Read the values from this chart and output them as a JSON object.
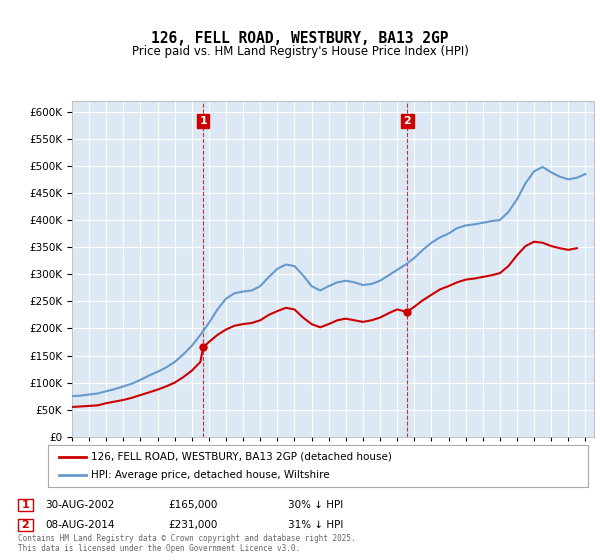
{
  "title": "126, FELL ROAD, WESTBURY, BA13 2GP",
  "subtitle": "Price paid vs. HM Land Registry's House Price Index (HPI)",
  "ylabel": "",
  "xlim_start": 1995,
  "xlim_end": 2025.5,
  "ylim": [
    0,
    620000
  ],
  "yticks": [
    0,
    50000,
    100000,
    150000,
    200000,
    250000,
    300000,
    350000,
    400000,
    450000,
    500000,
    550000,
    600000
  ],
  "background_color": "#dce9f5",
  "plot_bg_color": "#dce9f5",
  "grid_color": "#ffffff",
  "legend_labels": [
    "126, FELL ROAD, WESTBURY, BA13 2GP (detached house)",
    "HPI: Average price, detached house, Wiltshire"
  ],
  "legend_colors": [
    "#cc0000",
    "#6699cc"
  ],
  "purchase1_x": 2002.66,
  "purchase1_y": 165000,
  "purchase1_date": "30-AUG-2002",
  "purchase1_price": "£165,000",
  "purchase1_hpi": "30% ↓ HPI",
  "purchase2_x": 2014.6,
  "purchase2_y": 231000,
  "purchase2_date": "08-AUG-2014",
  "purchase2_price": "£231,000",
  "purchase2_hpi": "31% ↓ HPI",
  "footer": "Contains HM Land Registry data © Crown copyright and database right 2025.\nThis data is licensed under the Open Government Licence v3.0.",
  "hpi_line_color": "#6699cc",
  "price_line_color": "#cc0000",
  "vline_color": "#cc0000",
  "marker_color": "#cc0000",
  "hpi_data_x": [
    1995,
    1995.5,
    1996,
    1996.5,
    1997,
    1997.5,
    1998,
    1998.5,
    1999,
    1999.5,
    2000,
    2000.5,
    2001,
    2001.5,
    2002,
    2002.5,
    2003,
    2003.5,
    2004,
    2004.5,
    2005,
    2005.5,
    2006,
    2006.5,
    2007,
    2007.5,
    2008,
    2008.5,
    2009,
    2009.5,
    2010,
    2010.5,
    2011,
    2011.5,
    2012,
    2012.5,
    2013,
    2013.5,
    2014,
    2014.5,
    2015,
    2015.5,
    2016,
    2016.5,
    2017,
    2017.5,
    2018,
    2018.5,
    2019,
    2019.5,
    2020,
    2020.5,
    2021,
    2021.5,
    2022,
    2022.5,
    2023,
    2023.5,
    2024,
    2024.5,
    2025
  ],
  "hpi_data_y": [
    75000,
    76000,
    78000,
    80000,
    84000,
    88000,
    93000,
    98000,
    105000,
    113000,
    120000,
    128000,
    138000,
    152000,
    168000,
    188000,
    210000,
    235000,
    255000,
    265000,
    268000,
    270000,
    278000,
    295000,
    310000,
    318000,
    315000,
    298000,
    278000,
    270000,
    278000,
    285000,
    288000,
    285000,
    280000,
    282000,
    288000,
    298000,
    308000,
    318000,
    330000,
    345000,
    358000,
    368000,
    375000,
    385000,
    390000,
    392000,
    395000,
    398000,
    400000,
    415000,
    438000,
    468000,
    490000,
    498000,
    488000,
    480000,
    475000,
    478000,
    485000
  ],
  "price_data_x": [
    1995,
    1995.5,
    1996,
    1996.5,
    1997,
    1997.5,
    1998,
    1998.5,
    1999,
    1999.5,
    2000,
    2000.5,
    2001,
    2001.5,
    2002,
    2002.5,
    2002.66,
    2003,
    2003.5,
    2004,
    2004.5,
    2005,
    2005.5,
    2006,
    2006.5,
    2007,
    2007.5,
    2008,
    2008.5,
    2009,
    2009.5,
    2010,
    2010.5,
    2011,
    2011.5,
    2012,
    2012.5,
    2013,
    2013.5,
    2014,
    2014.5,
    2014.6,
    2015,
    2015.5,
    2016,
    2016.5,
    2017,
    2017.5,
    2018,
    2018.5,
    2019,
    2019.5,
    2020,
    2020.5,
    2021,
    2021.5,
    2022,
    2022.5,
    2023,
    2023.5,
    2024,
    2024.5
  ],
  "price_data_y": [
    55000,
    56000,
    57000,
    58000,
    62000,
    65000,
    68000,
    72000,
    77000,
    82000,
    87000,
    93000,
    100000,
    110000,
    122000,
    138000,
    165000,
    175000,
    188000,
    198000,
    205000,
    208000,
    210000,
    215000,
    225000,
    232000,
    238000,
    235000,
    220000,
    208000,
    202000,
    208000,
    215000,
    218000,
    215000,
    212000,
    215000,
    220000,
    228000,
    235000,
    231000,
    231000,
    240000,
    252000,
    262000,
    272000,
    278000,
    285000,
    290000,
    292000,
    295000,
    298000,
    302000,
    315000,
    335000,
    352000,
    360000,
    358000,
    352000,
    348000,
    345000,
    348000
  ]
}
